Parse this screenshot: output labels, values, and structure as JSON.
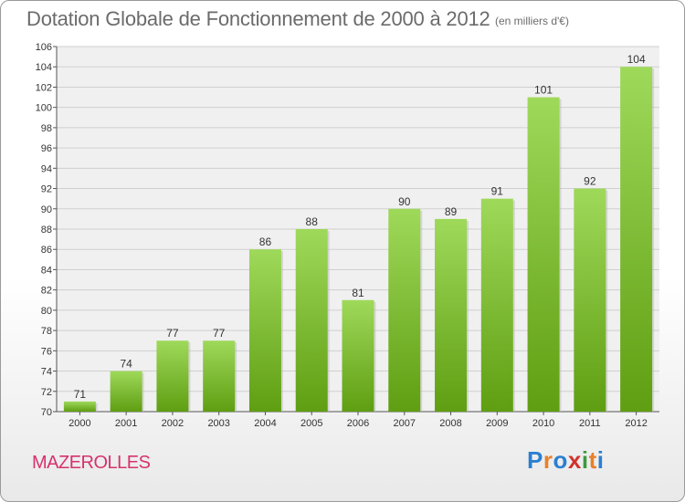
{
  "chart_data": {
    "type": "bar",
    "title": "Dotation Globale de Fonctionnement de 2000 à 2012",
    "subtitle": "(en milliers d'€)",
    "xlabel": "",
    "ylabel": "",
    "categories": [
      "2000",
      "2001",
      "2002",
      "2003",
      "2004",
      "2005",
      "2006",
      "2007",
      "2008",
      "2009",
      "2010",
      "2011",
      "2012"
    ],
    "values": [
      71,
      74,
      77,
      77,
      86,
      88,
      81,
      90,
      89,
      91,
      101,
      92,
      104
    ],
    "ylim": [
      70,
      106
    ],
    "ytick_step": 2,
    "grid": "horizontal",
    "bar_color": "#7dc234",
    "legend": "none"
  },
  "place_name": "MAZEROLLES",
  "brand": {
    "letters": [
      "P",
      "r",
      "o",
      "x",
      "i",
      "t",
      "i"
    ],
    "colors": [
      "#2b7fd1",
      "#e8802a",
      "#2b7fd1",
      "#d0332d",
      "#3c9a3c",
      "#e8802a",
      "#2b7fd1"
    ]
  }
}
